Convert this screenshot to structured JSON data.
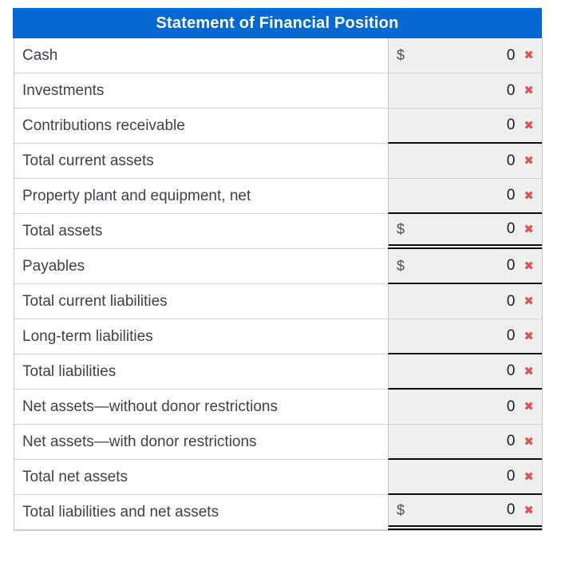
{
  "title": "Statement of Financial Position",
  "colors": {
    "header_bg": "#0668d2",
    "header_text": "#ffffff",
    "answer_cell_bg": "#efefef",
    "incorrect_red": "#d9534f",
    "label_text": "#3d4249",
    "sum_line": "#0b0b0b"
  },
  "icons": {
    "incorrect": "✖"
  },
  "rows": [
    {
      "label": "Cash",
      "prefix": "$",
      "value": "0",
      "status": "incorrect",
      "underline": "none"
    },
    {
      "label": "Investments",
      "value": "0",
      "status": "incorrect",
      "underline": "none"
    },
    {
      "label": "Contributions receivable",
      "value": "0",
      "status": "incorrect",
      "underline": "single"
    },
    {
      "label": "Total current assets",
      "value": "0",
      "status": "incorrect",
      "underline": "none"
    },
    {
      "label": "Property plant and equipment, net",
      "value": "0",
      "status": "incorrect",
      "underline": "single"
    },
    {
      "label": "Total assets",
      "prefix": "$",
      "value": "0",
      "status": "incorrect",
      "underline": "double"
    },
    {
      "label": "Payables",
      "prefix": "$",
      "value": "0",
      "status": "incorrect",
      "underline": "single"
    },
    {
      "label": "Total current liabilities",
      "value": "0",
      "status": "incorrect",
      "underline": "none"
    },
    {
      "label": "Long-term liabilities",
      "value": "0",
      "status": "incorrect",
      "underline": "single"
    },
    {
      "label": "Total liabilities",
      "value": "0",
      "status": "incorrect",
      "underline": "single"
    },
    {
      "label": "Net assets—without donor restrictions",
      "value": "0",
      "status": "incorrect",
      "underline": "none"
    },
    {
      "label": "Net assets—with donor restrictions",
      "value": "0",
      "status": "incorrect",
      "underline": "single"
    },
    {
      "label": "Total net assets",
      "value": "0",
      "status": "incorrect",
      "underline": "single"
    },
    {
      "label": "Total liabilities and net assets",
      "prefix": "$",
      "value": "0",
      "status": "incorrect",
      "underline": "double"
    }
  ]
}
